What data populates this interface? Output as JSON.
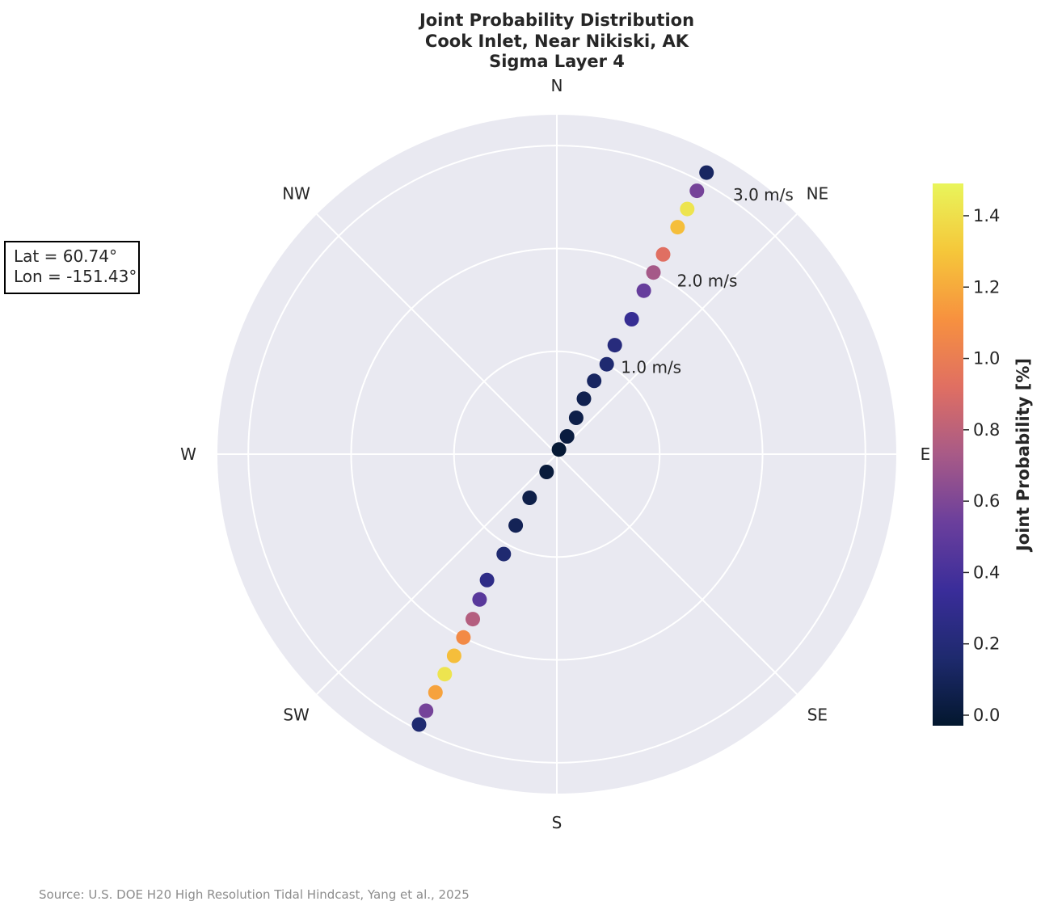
{
  "chart_data": {
    "type": "scatter",
    "title": [
      "Joint Probability Distribution",
      "Cook Inlet, Near Nikiski, AK",
      "Sigma Layer 4"
    ],
    "polar": {
      "directions": [
        "N",
        "NE",
        "E",
        "SE",
        "S",
        "SW",
        "W",
        "NW"
      ],
      "radial_ticks": [
        {
          "value": 1.0,
          "label": "1.0 m/s"
        },
        {
          "value": 2.0,
          "label": "2.0 m/s"
        },
        {
          "value": 3.0,
          "label": "3.0 m/s"
        }
      ],
      "rmax": 3.3,
      "background": "#e9e9f1",
      "grid": true
    },
    "series": [
      {
        "description_points": "flood / ebb clusters: direction (deg, clockwise from N), speed (m/s), joint probability (%)",
        "points": [
          [
            24,
            0.05,
            0.02
          ],
          [
            30,
            0.2,
            0.05
          ],
          [
            28,
            0.4,
            0.08
          ],
          [
            26,
            0.6,
            0.1
          ],
          [
            27,
            0.8,
            0.15
          ],
          [
            29,
            1.0,
            0.2
          ],
          [
            28,
            1.2,
            0.25
          ],
          [
            29,
            1.5,
            0.35
          ],
          [
            28,
            1.8,
            0.55
          ],
          [
            28,
            2.0,
            0.75
          ],
          [
            28,
            2.2,
            0.95
          ],
          [
            28,
            2.5,
            1.3
          ],
          [
            28,
            2.7,
            1.45
          ],
          [
            28,
            2.9,
            0.6
          ],
          [
            28,
            3.1,
            0.15
          ],
          [
            210,
            0.2,
            0.04
          ],
          [
            212,
            0.5,
            0.08
          ],
          [
            210,
            0.8,
            0.12
          ],
          [
            208,
            1.1,
            0.2
          ],
          [
            209,
            1.4,
            0.3
          ],
          [
            208,
            1.6,
            0.5
          ],
          [
            207,
            1.8,
            0.8
          ],
          [
            207,
            2.0,
            1.1
          ],
          [
            207,
            2.2,
            1.3
          ],
          [
            207,
            2.4,
            1.45
          ],
          [
            207,
            2.6,
            1.2
          ],
          [
            207,
            2.8,
            0.6
          ],
          [
            207,
            2.95,
            0.2
          ]
        ]
      }
    ],
    "colorbar": {
      "label": "Joint Probability [%]",
      "ticks": [
        "0.0",
        "0.2",
        "0.4",
        "0.6",
        "0.8",
        "1.0",
        "1.2",
        "1.4"
      ],
      "min": 0.0,
      "max": 1.52,
      "colors": [
        "#03172e",
        "#1e2a6e",
        "#3a2d9a",
        "#6b3f9c",
        "#a85a87",
        "#e06f62",
        "#f7913f",
        "#f5c73a",
        "#e9f55b"
      ]
    }
  },
  "location": {
    "lat": "Lat = 60.74°",
    "lon": "Lon = -151.43°"
  },
  "source": "Source: U.S. DOE H20 High Resolution Tidal Hindcast, Yang et al., 2025"
}
